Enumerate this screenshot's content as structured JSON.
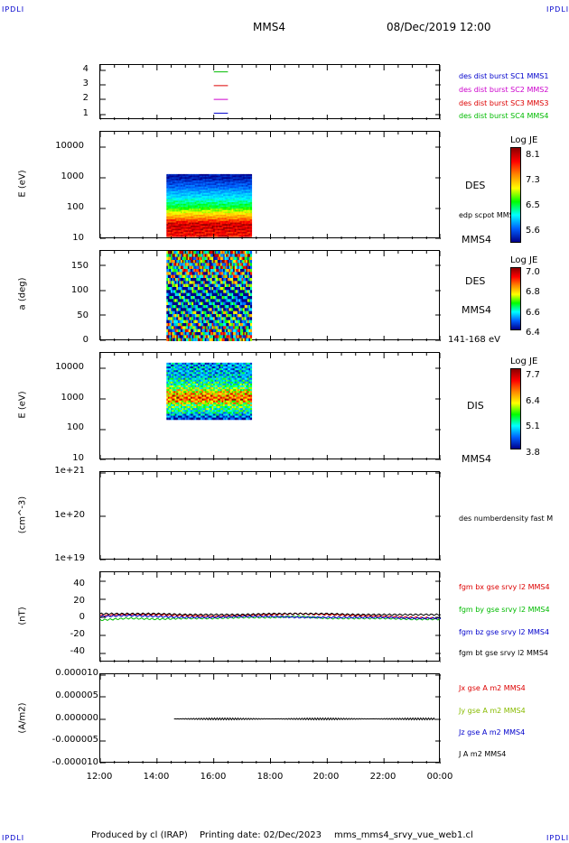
{
  "header": {
    "corner_left_top": "IPDLI",
    "corner_right_top": "IPDLI",
    "corner_left_bottom": "IPDLI",
    "corner_right_bottom": "IPDLI",
    "title": "MMS4",
    "date": "08/Dec/2019 12:00"
  },
  "footer": {
    "produced": "Produced by cl (IRAP)",
    "printing": "Printing date: 02/Dec/2023",
    "file": "mms_mms4_srvy_vue_web1.cl"
  },
  "colors": {
    "mms1": "#0000cc",
    "mms2": "#cc00cc",
    "mms3": "#dd0000",
    "mms4": "#00bb00",
    "bx": "#dd0000",
    "by": "#00bb00",
    "bz": "#0000cc",
    "bt": "#000000",
    "jx": "#dd0000",
    "jy": "#88bb00",
    "jz": "#0000cc",
    "jt": "#000000"
  },
  "xaxis": {
    "ticks": [
      "12:00",
      "14:00",
      "16:00",
      "18:00",
      "20:00",
      "22:00",
      "00:00"
    ]
  },
  "panels": {
    "p1": {
      "yticks": [
        "4",
        "3",
        "2",
        "1"
      ],
      "labels": [
        "des dist burst SC1 MMS1",
        "des dist burst SC2 MMS2",
        "des dist burst SC3 MMS3",
        "des dist burst SC4 MMS4"
      ]
    },
    "p2": {
      "ylabel": "E (eV)",
      "yticks": [
        "10000",
        "1000",
        "100",
        "10"
      ],
      "label_des": "DES",
      "label_scpot": "edp scpot MMS4",
      "label_sc": "MMS4",
      "cb_title": "Log JE",
      "cb_ticks": [
        "8.1",
        "7.3",
        "6.5",
        "5.6"
      ]
    },
    "p3": {
      "ylabel": "a (deg)",
      "yticks": [
        "150",
        "100",
        "50",
        "0"
      ],
      "label_des": "DES",
      "label_sc": "MMS4",
      "label_range": "141-168 eV",
      "cb_title": "Log JE",
      "cb_ticks": [
        "7.0",
        "6.8",
        "6.6",
        "6.4"
      ]
    },
    "p4": {
      "ylabel": "E (eV)",
      "yticks": [
        "10000",
        "1000",
        "100",
        "10"
      ],
      "label_dis": "DIS",
      "label_sc": "MMS4",
      "cb_title": "Log JE",
      "cb_ticks": [
        "7.7",
        "6.4",
        "5.1",
        "3.8"
      ]
    },
    "p5": {
      "ylabel": "(cm^-3)",
      "yticks": [
        "1e+21",
        "1e+20",
        "1e+19"
      ],
      "label": "des numberdensity fast M"
    },
    "p6": {
      "ylabel": "(nT)",
      "yticks": [
        "40",
        "20",
        "0",
        "-20",
        "-40"
      ],
      "labels": [
        "fgm bx gse srvy l2 MMS4",
        "fgm by gse srvy l2 MMS4",
        "fgm bz gse srvy l2 MMS4",
        "fgm bt gse srvy l2 MMS4"
      ]
    },
    "p7": {
      "ylabel": "(A/m2)",
      "yticks": [
        "0.000010",
        "0.000005",
        "0.000000",
        "-0.000005",
        "-0.000010"
      ],
      "labels": [
        "Jx gse A m2 MMS4",
        "Jy gse A m2 MMS4",
        "Jz gse A m2 MMS4",
        "J A m2 MMS4"
      ]
    }
  },
  "chart_data": [
    {
      "type": "line",
      "title": "",
      "xlabel": "",
      "x_range": [
        "12:00",
        "00:00"
      ],
      "ylim": [
        0.5,
        4.5
      ],
      "series": [
        {
          "name": "des dist burst SC1 MMS1",
          "y": 1,
          "x_start": "16:00",
          "x_end": "16:30"
        },
        {
          "name": "des dist burst SC2 MMS2",
          "y": 2,
          "x_start": "16:00",
          "x_end": "16:30"
        },
        {
          "name": "des dist burst SC3 MMS3",
          "y": 3,
          "x_start": "16:00",
          "x_end": "16:30"
        },
        {
          "name": "des dist burst SC4 MMS4",
          "y": 4,
          "x_start": "16:00",
          "x_end": "16:30"
        }
      ]
    },
    {
      "type": "heatmap",
      "ylabel": "E (eV)",
      "yscale": "log",
      "ylim": [
        10,
        20000
      ],
      "x_data_range": [
        "14:20",
        "17:20"
      ],
      "y_data_range": [
        12,
        1000
      ],
      "colorbar": {
        "title": "Log JE",
        "range": [
          5.6,
          8.1
        ]
      },
      "spectrum": [
        {
          "energy": 15,
          "logJE": 7.9
        },
        {
          "energy": 30,
          "logJE": 8.0
        },
        {
          "energy": 50,
          "logJE": 7.5
        },
        {
          "energy": 100,
          "logJE": 6.8
        },
        {
          "energy": 200,
          "logJE": 6.4
        },
        {
          "energy": 400,
          "logJE": 6.0
        },
        {
          "energy": 800,
          "logJE": 5.7
        }
      ]
    },
    {
      "type": "heatmap",
      "ylabel": "a (deg)",
      "ylim": [
        0,
        180
      ],
      "x_data_range": [
        "14:20",
        "17:20"
      ],
      "colorbar": {
        "title": "Log JE",
        "range": [
          6.4,
          7.0
        ]
      },
      "spectrum": [
        {
          "angle": 170,
          "logJE": 6.95
        },
        {
          "angle": 150,
          "logJE": 6.85
        },
        {
          "angle": 120,
          "logJE": 6.75
        },
        {
          "angle": 90,
          "logJE": 6.6
        },
        {
          "angle": 60,
          "logJE": 6.7
        },
        {
          "angle": 30,
          "logJE": 6.8
        },
        {
          "angle": 10,
          "logJE": 6.85
        }
      ]
    },
    {
      "type": "heatmap",
      "ylabel": "E (eV)",
      "yscale": "log",
      "ylim": [
        10,
        20000
      ],
      "x_data_range": [
        "14:20",
        "17:20"
      ],
      "y_data_range": [
        180,
        10000
      ],
      "colorbar": {
        "title": "Log JE",
        "range": [
          3.8,
          7.7
        ]
      },
      "spectrum": [
        {
          "energy": 200,
          "logJE": 4.5
        },
        {
          "energy": 300,
          "logJE": 5.6
        },
        {
          "energy": 500,
          "logJE": 6.2
        },
        {
          "energy": 800,
          "logJE": 7.6
        },
        {
          "energy": 1200,
          "logJE": 7.1
        },
        {
          "energy": 2000,
          "logJE": 6.0
        },
        {
          "energy": 4000,
          "logJE": 5.3
        },
        {
          "energy": 8000,
          "logJE": 5.2
        }
      ]
    },
    {
      "type": "line",
      "ylabel": "(cm^-3)",
      "yscale": "log",
      "ylim": [
        1e+19,
        1e+21
      ],
      "series": []
    },
    {
      "type": "line",
      "ylabel": "(nT)",
      "ylim": [
        -50,
        50
      ],
      "x": [
        "12:00",
        "13:00",
        "14:00",
        "15:00",
        "16:00",
        "17:00",
        "18:00",
        "19:00",
        "20:00",
        "21:00",
        "22:00",
        "23:00",
        "00:00"
      ],
      "series": [
        {
          "name": "fgm bx gse srvy l2 MMS4",
          "values": [
            2,
            3,
            3,
            2,
            1,
            2,
            3,
            4,
            3,
            2,
            1,
            0,
            -1
          ]
        },
        {
          "name": "fgm by gse srvy l2 MMS4",
          "values": [
            -3,
            -1,
            -2,
            -1,
            -1,
            0,
            0,
            1,
            -1,
            -1,
            -1,
            -2,
            -2
          ]
        },
        {
          "name": "fgm bz gse srvy l2 MMS4",
          "values": [
            1,
            2,
            1,
            0,
            0,
            1,
            1,
            0,
            0,
            0,
            0,
            -1,
            -1
          ]
        },
        {
          "name": "fgm bt gse srvy l2 MMS4",
          "values": [
            4,
            4,
            4,
            3,
            3,
            3,
            4,
            4,
            4,
            3,
            3,
            3,
            3
          ]
        }
      ]
    },
    {
      "type": "line",
      "ylabel": "(A/m2)",
      "ylim": [
        -1e-05,
        1e-05
      ],
      "x": [
        "12:00",
        "14:00",
        "16:00",
        "18:00",
        "20:00",
        "22:00",
        "00:00"
      ],
      "series": [
        {
          "name": "J A m2 MMS4",
          "values": [
            0,
            0,
            0,
            0,
            0,
            0,
            0
          ]
        }
      ]
    }
  ]
}
